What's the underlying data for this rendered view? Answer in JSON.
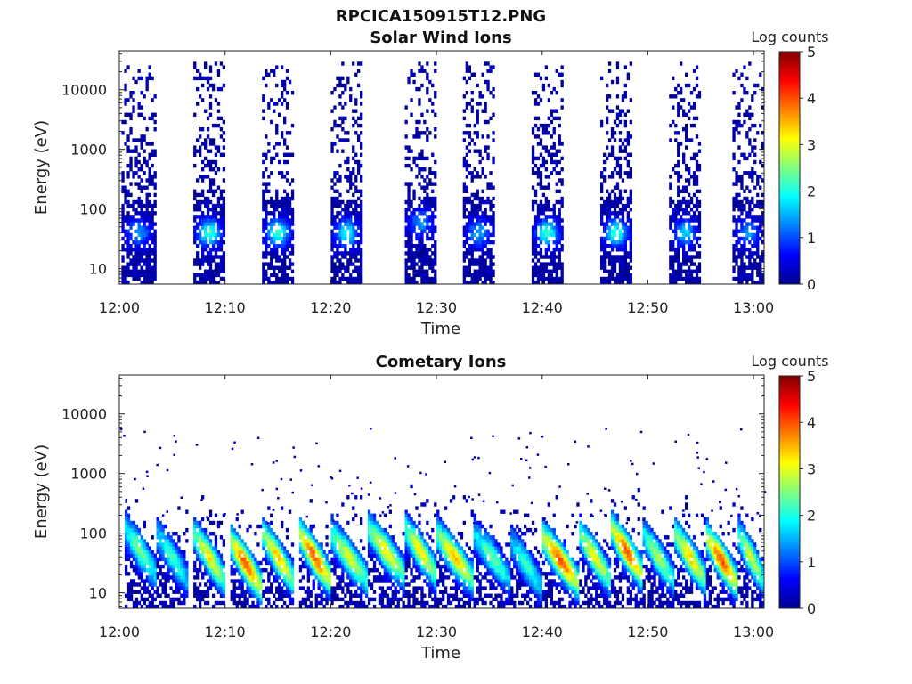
{
  "figure_title": "RPCICA150915T12.PNG",
  "chart_data": [
    {
      "type": "heatmap",
      "title": "Solar Wind Ions",
      "xlabel": "Time",
      "ylabel": "Energy (eV)",
      "x_ticks": [
        "12:00",
        "12:10",
        "12:20",
        "12:30",
        "12:40",
        "12:50",
        "13:00"
      ],
      "x_range_minutes": [
        0,
        61
      ],
      "y_scale": "log",
      "y_ticks": [
        "10",
        "100",
        "1000",
        "10000"
      ],
      "y_range": [
        5.5,
        45000
      ],
      "colorbar": {
        "label": "Log counts",
        "ticks": [
          "0",
          "1",
          "2",
          "3",
          "4",
          "5"
        ],
        "range": [
          0,
          5
        ],
        "colormap": "jet"
      },
      "bursts": [
        {
          "start_min": 0.2,
          "end_min": 3.5,
          "peak_energy_ev": 40,
          "peak_log_counts": 1.2,
          "max_energy_ev": 20000
        },
        {
          "start_min": 7.0,
          "end_min": 10.0,
          "peak_energy_ev": 40,
          "peak_log_counts": 2.0,
          "max_energy_ev": 20000
        },
        {
          "start_min": 13.5,
          "end_min": 16.5,
          "peak_energy_ev": 40,
          "peak_log_counts": 2.0,
          "max_energy_ev": 20000
        },
        {
          "start_min": 20.0,
          "end_min": 23.0,
          "peak_energy_ev": 40,
          "peak_log_counts": 1.8,
          "max_energy_ev": 20000
        },
        {
          "start_min": 27.0,
          "end_min": 30.0,
          "peak_energy_ev": 60,
          "peak_log_counts": 1.2,
          "max_energy_ev": 20000
        },
        {
          "start_min": 32.5,
          "end_min": 35.5,
          "peak_energy_ev": 40,
          "peak_log_counts": 1.3,
          "max_energy_ev": 20000
        },
        {
          "start_min": 39.0,
          "end_min": 42.0,
          "peak_energy_ev": 40,
          "peak_log_counts": 2.0,
          "max_energy_ev": 20000
        },
        {
          "start_min": 45.5,
          "end_min": 48.5,
          "peak_energy_ev": 40,
          "peak_log_counts": 2.0,
          "max_energy_ev": 20000
        },
        {
          "start_min": 52.0,
          "end_min": 55.0,
          "peak_energy_ev": 40,
          "peak_log_counts": 1.5,
          "max_energy_ev": 20000
        },
        {
          "start_min": 58.0,
          "end_min": 61.0,
          "peak_energy_ev": 40,
          "peak_log_counts": 1.2,
          "max_energy_ev": 20000
        }
      ]
    },
    {
      "type": "heatmap",
      "title": "Cometary Ions",
      "xlabel": "Time",
      "ylabel": "Energy (eV)",
      "x_ticks": [
        "12:00",
        "12:10",
        "12:20",
        "12:30",
        "12:40",
        "12:50",
        "13:00"
      ],
      "x_range_minutes": [
        0,
        61
      ],
      "y_scale": "log",
      "y_ticks": [
        "10",
        "100",
        "1000",
        "10000"
      ],
      "y_range": [
        5.5,
        45000
      ],
      "colorbar": {
        "label": "Log counts",
        "ticks": [
          "0",
          "1",
          "2",
          "3",
          "4",
          "5"
        ],
        "range": [
          0,
          5
        ],
        "colormap": "jet"
      },
      "bursts": [
        {
          "start_min": 0.5,
          "end_min": 3.5,
          "peak_energy_ev": 50,
          "peak_log_counts": 2.3,
          "max_energy_ev": 400
        },
        {
          "start_min": 3.5,
          "end_min": 6.5,
          "peak_energy_ev": 40,
          "peak_log_counts": 2.0,
          "max_energy_ev": 400
        },
        {
          "start_min": 7.0,
          "end_min": 10.0,
          "peak_energy_ev": 40,
          "peak_log_counts": 3.0,
          "max_energy_ev": 600
        },
        {
          "start_min": 10.5,
          "end_min": 13.5,
          "peak_energy_ev": 30,
          "peak_log_counts": 3.8,
          "max_energy_ev": 400
        },
        {
          "start_min": 13.5,
          "end_min": 16.5,
          "peak_energy_ev": 40,
          "peak_log_counts": 3.2,
          "max_energy_ev": 800
        },
        {
          "start_min": 17.0,
          "end_min": 20.0,
          "peak_energy_ev": 40,
          "peak_log_counts": 3.8,
          "max_energy_ev": 400
        },
        {
          "start_min": 20.0,
          "end_min": 23.5,
          "peak_energy_ev": 40,
          "peak_log_counts": 2.8,
          "max_energy_ev": 800
        },
        {
          "start_min": 23.5,
          "end_min": 27.0,
          "peak_energy_ev": 50,
          "peak_log_counts": 3.0,
          "max_energy_ev": 800
        },
        {
          "start_min": 27.0,
          "end_min": 30.0,
          "peak_energy_ev": 50,
          "peak_log_counts": 3.0,
          "max_energy_ev": 800
        },
        {
          "start_min": 30.0,
          "end_min": 33.5,
          "peak_energy_ev": 40,
          "peak_log_counts": 3.2,
          "max_energy_ev": 600
        },
        {
          "start_min": 33.5,
          "end_min": 37.0,
          "peak_energy_ev": 40,
          "peak_log_counts": 2.2,
          "max_energy_ev": 400
        },
        {
          "start_min": 37.0,
          "end_min": 40.0,
          "peak_energy_ev": 30,
          "peak_log_counts": 2.0,
          "max_energy_ev": 300
        },
        {
          "start_min": 40.0,
          "end_min": 43.5,
          "peak_energy_ev": 35,
          "peak_log_counts": 3.8,
          "max_energy_ev": 600
        },
        {
          "start_min": 43.5,
          "end_min": 46.5,
          "peak_energy_ev": 40,
          "peak_log_counts": 3.0,
          "max_energy_ev": 400
        },
        {
          "start_min": 46.5,
          "end_min": 49.5,
          "peak_energy_ev": 50,
          "peak_log_counts": 3.8,
          "max_energy_ev": 600
        },
        {
          "start_min": 49.5,
          "end_min": 52.5,
          "peak_energy_ev": 40,
          "peak_log_counts": 2.5,
          "max_energy_ev": 500
        },
        {
          "start_min": 52.5,
          "end_min": 55.5,
          "peak_energy_ev": 40,
          "peak_log_counts": 3.2,
          "max_energy_ev": 600
        },
        {
          "start_min": 55.5,
          "end_min": 58.5,
          "peak_energy_ev": 35,
          "peak_log_counts": 3.8,
          "max_energy_ev": 600
        },
        {
          "start_min": 58.5,
          "end_min": 61.0,
          "peak_energy_ev": 40,
          "peak_log_counts": 2.8,
          "max_energy_ev": 400
        }
      ]
    }
  ]
}
